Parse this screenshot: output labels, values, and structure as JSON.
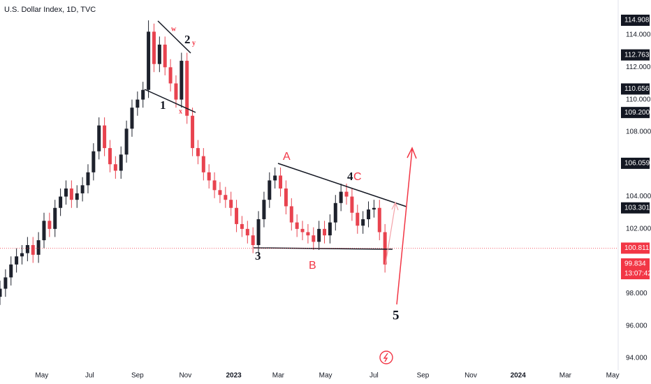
{
  "chart_data": {
    "type": "candlestick",
    "title": "U.S. Dollar Index, 1D, TVC",
    "up_color": "#1e222d",
    "down_color": "#e8434f",
    "x": [
      0,
      1,
      2,
      3,
      4,
      5,
      6,
      7,
      8,
      9,
      10,
      11,
      12,
      13,
      14,
      15,
      16,
      17,
      18,
      19,
      20,
      21,
      22,
      23,
      24,
      25,
      26,
      27,
      28,
      29,
      30,
      31,
      32,
      33,
      34,
      35,
      36,
      37,
      38,
      39,
      40,
      41,
      42,
      43,
      44,
      45,
      46,
      47,
      48,
      49,
      50,
      51,
      52,
      53,
      54,
      55,
      56,
      57,
      58,
      59,
      60,
      61,
      62,
      63,
      64,
      65,
      66,
      67,
      68,
      69,
      70
    ],
    "open": [
      97.8,
      98.3,
      99.0,
      99.8,
      100.3,
      100.5,
      101.0,
      100.4,
      101.3,
      102.5,
      102.0,
      103.3,
      104.0,
      104.5,
      103.8,
      104.2,
      104.7,
      105.5,
      106.8,
      108.4,
      107.0,
      106.0,
      105.6,
      106.6,
      108.2,
      109.5,
      110.0,
      110.6,
      114.2,
      112.2,
      113.4,
      112.0,
      111.0,
      110.0,
      112.4,
      109.0,
      107.0,
      106.5,
      105.5,
      105.0,
      104.4,
      104.1,
      103.8,
      103.3,
      102.3,
      102.0,
      101.6,
      101.0,
      102.6,
      103.8,
      105.0,
      105.3,
      104.5,
      103.4,
      102.4,
      102.0,
      101.8,
      101.6,
      101.2,
      102.0,
      101.6,
      102.4,
      103.6,
      104.3,
      104.0,
      103.0,
      102.2,
      102.6,
      103.2,
      103.3,
      101.8
    ],
    "high": [
      98.8,
      99.5,
      100.3,
      100.8,
      101.0,
      101.5,
      101.5,
      101.8,
      103.0,
      103.0,
      103.8,
      104.5,
      105.0,
      105.0,
      104.7,
      105.2,
      106.0,
      107.3,
      108.9,
      108.9,
      107.5,
      106.5,
      107.1,
      108.7,
      110.0,
      110.5,
      111.1,
      114.9,
      114.7,
      113.9,
      113.9,
      112.5,
      111.5,
      112.9,
      112.9,
      109.5,
      107.5,
      107.0,
      106.0,
      105.5,
      104.9,
      104.6,
      104.3,
      103.8,
      102.8,
      102.5,
      102.1,
      103.1,
      104.3,
      105.5,
      105.8,
      105.8,
      105.0,
      103.9,
      102.9,
      102.5,
      102.3,
      102.1,
      102.5,
      102.5,
      102.9,
      104.1,
      104.8,
      104.8,
      104.5,
      103.5,
      103.1,
      103.7,
      103.8,
      103.8,
      102.3
    ],
    "low": [
      97.3,
      97.8,
      98.5,
      99.3,
      99.8,
      100.0,
      99.9,
      99.9,
      100.8,
      101.5,
      101.5,
      102.8,
      103.5,
      103.3,
      103.3,
      103.7,
      104.2,
      105.0,
      106.3,
      106.5,
      105.5,
      105.1,
      105.1,
      106.1,
      107.7,
      109.0,
      109.5,
      110.1,
      111.7,
      111.7,
      111.5,
      110.5,
      109.5,
      109.5,
      108.5,
      106.5,
      106.0,
      105.0,
      104.5,
      103.9,
      103.6,
      103.3,
      102.8,
      101.8,
      101.5,
      101.1,
      100.5,
      100.5,
      102.1,
      103.3,
      104.5,
      104.0,
      102.9,
      101.9,
      101.5,
      101.3,
      101.1,
      100.7,
      100.7,
      101.1,
      101.1,
      101.9,
      103.1,
      103.5,
      102.5,
      101.7,
      101.7,
      102.1,
      102.7,
      101.3,
      99.3
    ],
    "close": [
      98.3,
      99.0,
      99.8,
      100.3,
      100.5,
      101.0,
      100.4,
      101.3,
      102.5,
      102.0,
      103.3,
      104.0,
      104.5,
      103.8,
      104.2,
      104.7,
      105.5,
      106.8,
      108.4,
      107.0,
      106.0,
      105.6,
      106.6,
      108.2,
      109.5,
      110.0,
      110.6,
      114.2,
      112.2,
      113.4,
      112.0,
      111.0,
      110.0,
      112.4,
      109.0,
      107.0,
      106.5,
      105.5,
      105.0,
      104.4,
      104.1,
      103.8,
      103.3,
      102.3,
      102.0,
      101.6,
      101.0,
      102.6,
      103.8,
      105.0,
      105.3,
      104.5,
      103.4,
      102.4,
      102.0,
      101.8,
      101.6,
      101.2,
      102.0,
      101.6,
      102.4,
      103.6,
      104.3,
      104.0,
      103.0,
      102.2,
      102.6,
      103.2,
      103.3,
      101.8,
      99.8
    ],
    "xlim": [
      0,
      112.4
    ],
    "xticks": [
      {
        "value": 7.6,
        "label": "May"
      },
      {
        "value": 16.3,
        "label": "Jul"
      },
      {
        "value": 25.0,
        "label": "Sep"
      },
      {
        "value": 33.7,
        "label": "Nov"
      },
      {
        "value": 42.5,
        "label": "2023"
      },
      {
        "value": 50.6,
        "label": "Mar"
      },
      {
        "value": 59.2,
        "label": "May"
      },
      {
        "value": 68.0,
        "label": "Jul"
      },
      {
        "value": 76.9,
        "label": "Sep"
      },
      {
        "value": 85.6,
        "label": "Nov"
      },
      {
        "value": 94.2,
        "label": "2024"
      },
      {
        "value": 102.8,
        "label": "Mar"
      },
      {
        "value": 111.4,
        "label": "May"
      }
    ],
    "ylim": [
      93.27,
      116.16
    ],
    "yticks": [
      {
        "value": 114,
        "label": "114.000"
      },
      {
        "value": 112,
        "label": "112.000"
      },
      {
        "value": 110,
        "label": "110.000"
      },
      {
        "value": 108,
        "label": "108.000"
      },
      {
        "value": 104,
        "label": "104.000"
      },
      {
        "value": 102,
        "label": "102.000"
      },
      {
        "value": 98,
        "label": "98.000"
      },
      {
        "value": 96,
        "label": "96.000"
      },
      {
        "value": 94,
        "label": "94.000"
      }
    ],
    "price_labels": [
      {
        "value": 114.908,
        "label": "114.908",
        "color": "#131722"
      },
      {
        "value": 112.763,
        "label": "112.763",
        "color": "#131722"
      },
      {
        "value": 110.656,
        "label": "110.656",
        "color": "#131722"
      },
      {
        "value": 109.2,
        "label": "109.200",
        "color": "#131722"
      },
      {
        "value": 106.059,
        "label": "106.059",
        "color": "#131722"
      },
      {
        "value": 103.301,
        "label": "103.301",
        "color": "#131722"
      },
      {
        "value": 100.811,
        "label": "100.811",
        "color": "#f23645"
      },
      {
        "value": 99.834,
        "label": "99.834",
        "color": "#f23645",
        "countdown": "13:07:42"
      }
    ],
    "annotations": [
      "w",
      "2",
      "y",
      "1",
      "x",
      "A",
      "4",
      "C",
      "3",
      "B",
      "5"
    ]
  }
}
